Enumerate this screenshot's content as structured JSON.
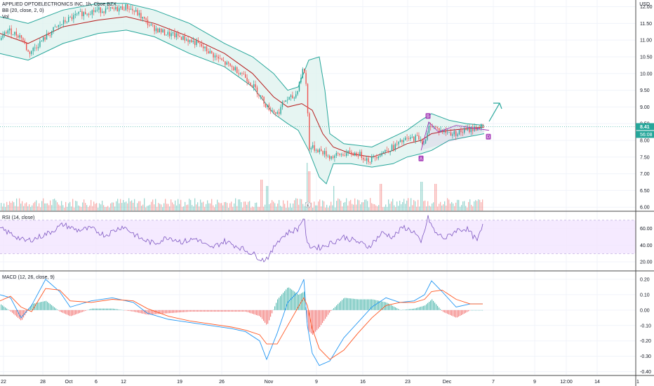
{
  "header": {
    "title": "APPLIED OPTOELECTRONICS INC, 1h, Cboe BZX",
    "bb_label": "BB (20, close, 2, 0)",
    "vol_label": "Vol",
    "currency": "USD"
  },
  "price_axis": {
    "ticks": [
      "12.00",
      "11.50",
      "11.00",
      "10.50",
      "10.00",
      "9.50",
      "9.00",
      "8.50",
      "8.00",
      "7.50",
      "7.00",
      "6.50",
      "6.00"
    ],
    "last_price": "8.41",
    "countdown": "56:08"
  },
  "rsi_panel": {
    "label": "RSI (14, close)",
    "ticks": [
      "60.00",
      "40.00",
      "20.00"
    ],
    "band_top": 70,
    "band_bottom": 30
  },
  "macd_panel": {
    "label": "MACD (12, 26, close, 9)",
    "ticks": [
      "0.20",
      "0.10",
      "0.00",
      "-0.10",
      "-0.20",
      "-0.30",
      "-0.40"
    ]
  },
  "time_axis": {
    "labels": [
      "22",
      "28",
      "Oct",
      "6",
      "12",
      "19",
      "26",
      "Nov",
      "9",
      "16",
      "23",
      "Dec",
      "7",
      "9",
      "12:00",
      "14",
      "1"
    ]
  },
  "annotations": {
    "pattern_points": [
      "A",
      "B",
      "D"
    ],
    "event_marker": "E"
  },
  "colors": {
    "up": "#26a69a",
    "down": "#ef5350",
    "bb_fill": "#e0f2ef",
    "bb_line": "#26a69a",
    "basis": "#b71c1c",
    "rsi": "#7e57c2",
    "rsi_band": "#f3e5ff",
    "macd": "#2196f3",
    "signal": "#ff5722",
    "pattern": "#9c27b0",
    "arrow": "#26a69a",
    "price_tag": "#26a69a"
  },
  "chart_data": [
    {
      "type": "candlestick",
      "title": "APPLIED OPTOELECTRONICS INC, 1h, Cboe BZX",
      "x": [
        "22",
        "28",
        "Oct",
        "6",
        "12",
        "19",
        "26",
        "Nov",
        "9",
        "16",
        "23",
        "Dec",
        "7",
        "9",
        "12:00",
        "14",
        "1"
      ],
      "ylim": [
        5.9,
        12.2
      ],
      "grid": true,
      "close_path": [
        [
          0,
          11.0
        ],
        [
          10,
          11.3
        ],
        [
          30,
          11.1
        ],
        [
          40,
          10.6
        ],
        [
          55,
          10.9
        ],
        [
          75,
          11.3
        ],
        [
          95,
          11.6
        ],
        [
          115,
          11.8
        ],
        [
          140,
          11.9
        ],
        [
          160,
          11.9
        ],
        [
          180,
          12.0
        ],
        [
          195,
          11.8
        ],
        [
          215,
          11.4
        ],
        [
          235,
          11.2
        ],
        [
          255,
          11.1
        ],
        [
          280,
          10.9
        ],
        [
          300,
          10.6
        ],
        [
          320,
          10.3
        ],
        [
          345,
          10.0
        ],
        [
          365,
          9.5
        ],
        [
          380,
          9.0
        ],
        [
          395,
          8.8
        ],
        [
          405,
          9.2
        ],
        [
          420,
          9.3
        ],
        [
          432,
          10.2
        ],
        [
          436,
          9.6
        ],
        [
          440,
          7.8
        ],
        [
          455,
          7.7
        ],
        [
          470,
          7.5
        ],
        [
          490,
          7.6
        ],
        [
          510,
          7.6
        ],
        [
          525,
          7.4
        ],
        [
          540,
          7.6
        ],
        [
          560,
          7.8
        ],
        [
          575,
          8.0
        ],
        [
          595,
          8.1
        ],
        [
          605,
          7.9
        ],
        [
          612,
          8.5
        ],
        [
          625,
          8.3
        ],
        [
          645,
          8.2
        ],
        [
          665,
          8.3
        ],
        [
          685,
          8.41
        ]
      ],
      "bb_upper": [
        [
          0,
          11.7
        ],
        [
          40,
          11.5
        ],
        [
          90,
          11.9
        ],
        [
          140,
          12.1
        ],
        [
          180,
          12.1
        ],
        [
          220,
          11.9
        ],
        [
          270,
          11.5
        ],
        [
          320,
          10.9
        ],
        [
          360,
          10.5
        ],
        [
          390,
          10.0
        ],
        [
          410,
          9.5
        ],
        [
          425,
          9.6
        ],
        [
          440,
          10.4
        ],
        [
          455,
          10.5
        ],
        [
          463,
          9.5
        ],
        [
          470,
          8.2
        ],
        [
          490,
          7.9
        ],
        [
          530,
          7.8
        ],
        [
          560,
          8.1
        ],
        [
          580,
          8.3
        ],
        [
          600,
          8.6
        ],
        [
          615,
          8.8
        ],
        [
          640,
          8.6
        ],
        [
          665,
          8.5
        ],
        [
          690,
          8.45
        ]
      ],
      "bb_basis": [
        [
          0,
          11.2
        ],
        [
          40,
          10.9
        ],
        [
          90,
          11.4
        ],
        [
          140,
          11.6
        ],
        [
          180,
          11.7
        ],
        [
          220,
          11.5
        ],
        [
          270,
          11.1
        ],
        [
          320,
          10.6
        ],
        [
          360,
          10.0
        ],
        [
          390,
          9.3
        ],
        [
          410,
          9.0
        ],
        [
          430,
          9.1
        ],
        [
          445,
          8.9
        ],
        [
          460,
          8.2
        ],
        [
          475,
          7.8
        ],
        [
          500,
          7.6
        ],
        [
          530,
          7.5
        ],
        [
          560,
          7.7
        ],
        [
          580,
          7.9
        ],
        [
          600,
          8.0
        ],
        [
          615,
          8.2
        ],
        [
          640,
          8.3
        ],
        [
          665,
          8.35
        ],
        [
          690,
          8.4
        ]
      ],
      "bb_lower": [
        [
          0,
          10.6
        ],
        [
          40,
          10.4
        ],
        [
          90,
          10.9
        ],
        [
          140,
          11.2
        ],
        [
          180,
          11.3
        ],
        [
          220,
          11.1
        ],
        [
          270,
          10.6
        ],
        [
          320,
          10.2
        ],
        [
          360,
          9.6
        ],
        [
          390,
          8.8
        ],
        [
          410,
          8.5
        ],
        [
          425,
          8.3
        ],
        [
          440,
          7.7
        ],
        [
          455,
          6.9
        ],
        [
          465,
          6.7
        ],
        [
          475,
          7.3
        ],
        [
          500,
          7.3
        ],
        [
          530,
          7.2
        ],
        [
          560,
          7.3
        ],
        [
          580,
          7.5
        ],
        [
          600,
          7.6
        ],
        [
          615,
          7.7
        ],
        [
          640,
          8.0
        ],
        [
          665,
          8.1
        ],
        [
          690,
          8.2
        ]
      ],
      "volume_spikes": [
        [
          372,
          0.6
        ],
        [
          380,
          0.45
        ],
        [
          437,
          1.0
        ],
        [
          440,
          0.8
        ],
        [
          475,
          0.45
        ],
        [
          542,
          0.5
        ],
        [
          600,
          0.55
        ],
        [
          620,
          0.5
        ]
      ]
    },
    {
      "type": "line",
      "title": "RSI (14, close)",
      "ylim": [
        10,
        80
      ],
      "series": [
        {
          "values": [
            [
              0,
              60
            ],
            [
              20,
              52
            ],
            [
              35,
              45
            ],
            [
              50,
              48
            ],
            [
              70,
              55
            ],
            [
              90,
              65
            ],
            [
              110,
              58
            ],
            [
              130,
              60
            ],
            [
              150,
              52
            ],
            [
              175,
              63
            ],
            [
              200,
              48
            ],
            [
              220,
              42
            ],
            [
              240,
              50
            ],
            [
              260,
              44
            ],
            [
              280,
              48
            ],
            [
              300,
              36
            ],
            [
              320,
              45
            ],
            [
              340,
              38
            ],
            [
              360,
              30
            ],
            [
              375,
              22
            ],
            [
              385,
              28
            ],
            [
              395,
              45
            ],
            [
              410,
              55
            ],
            [
              425,
              60
            ],
            [
              433,
              75
            ],
            [
              438,
              40
            ],
            [
              455,
              37
            ],
            [
              470,
              42
            ],
            [
              490,
              50
            ],
            [
              510,
              44
            ],
            [
              525,
              38
            ],
            [
              545,
              55
            ],
            [
              560,
              50
            ],
            [
              575,
              62
            ],
            [
              590,
              56
            ],
            [
              600,
              42
            ],
            [
              610,
              73
            ],
            [
              620,
              55
            ],
            [
              635,
              48
            ],
            [
              650,
              58
            ],
            [
              665,
              60
            ],
            [
              680,
              45
            ],
            [
              688,
              63
            ]
          ]
        }
      ]
    },
    {
      "type": "bar+line",
      "title": "MACD (12, 26, close, 9)",
      "ylim": [
        -0.42,
        0.25
      ],
      "series": [
        {
          "values": [
            [
              0,
              0.1
            ],
            [
              15,
              0.08
            ],
            [
              30,
              -0.05
            ],
            [
              45,
              0.03
            ],
            [
              65,
              0.2
            ],
            [
              85,
              0.12
            ],
            [
              100,
              0.02
            ],
            [
              130,
              0.06
            ],
            [
              160,
              0.08
            ],
            [
              190,
              0.05
            ],
            [
              210,
              -0.02
            ],
            [
              240,
              -0.06
            ],
            [
              270,
              -0.08
            ],
            [
              300,
              -0.1
            ],
            [
              330,
              -0.12
            ],
            [
              350,
              -0.14
            ],
            [
              370,
              -0.2
            ],
            [
              380,
              -0.32
            ],
            [
              395,
              -0.15
            ],
            [
              410,
              0.05
            ],
            [
              425,
              0.12
            ],
            [
              433,
              0.2
            ],
            [
              438,
              -0.1
            ],
            [
              445,
              -0.28
            ],
            [
              455,
              -0.36
            ],
            [
              470,
              -0.33
            ],
            [
              490,
              -0.18
            ],
            [
              510,
              -0.08
            ],
            [
              530,
              0.02
            ],
            [
              550,
              0.08
            ],
            [
              570,
              0.05
            ],
            [
              590,
              0.06
            ],
            [
              605,
              0.1
            ],
            [
              615,
              0.19
            ],
            [
              630,
              0.12
            ],
            [
              650,
              0.02
            ],
            [
              670,
              0.04
            ],
            [
              688,
              0.04
            ]
          ]
        },
        {
          "values": [
            [
              0,
              0.06
            ],
            [
              15,
              0.09
            ],
            [
              30,
              0.02
            ],
            [
              45,
              -0.01
            ],
            [
              65,
              0.14
            ],
            [
              85,
              0.13
            ],
            [
              100,
              0.06
            ],
            [
              130,
              0.05
            ],
            [
              160,
              0.07
            ],
            [
              190,
              0.06
            ],
            [
              210,
              0.01
            ],
            [
              240,
              -0.04
            ],
            [
              270,
              -0.07
            ],
            [
              300,
              -0.09
            ],
            [
              330,
              -0.11
            ],
            [
              350,
              -0.13
            ],
            [
              370,
              -0.16
            ],
            [
              380,
              -0.22
            ],
            [
              395,
              -0.22
            ],
            [
              410,
              -0.1
            ],
            [
              425,
              0.02
            ],
            [
              433,
              0.08
            ],
            [
              438,
              0.03
            ],
            [
              445,
              -0.12
            ],
            [
              455,
              -0.25
            ],
            [
              470,
              -0.32
            ],
            [
              490,
              -0.26
            ],
            [
              510,
              -0.15
            ],
            [
              530,
              -0.05
            ],
            [
              550,
              0.03
            ],
            [
              570,
              0.05
            ],
            [
              590,
              0.05
            ],
            [
              605,
              0.07
            ],
            [
              615,
              0.12
            ],
            [
              630,
              0.13
            ],
            [
              650,
              0.07
            ],
            [
              670,
              0.04
            ],
            [
              688,
              0.04
            ]
          ]
        }
      ]
    }
  ]
}
